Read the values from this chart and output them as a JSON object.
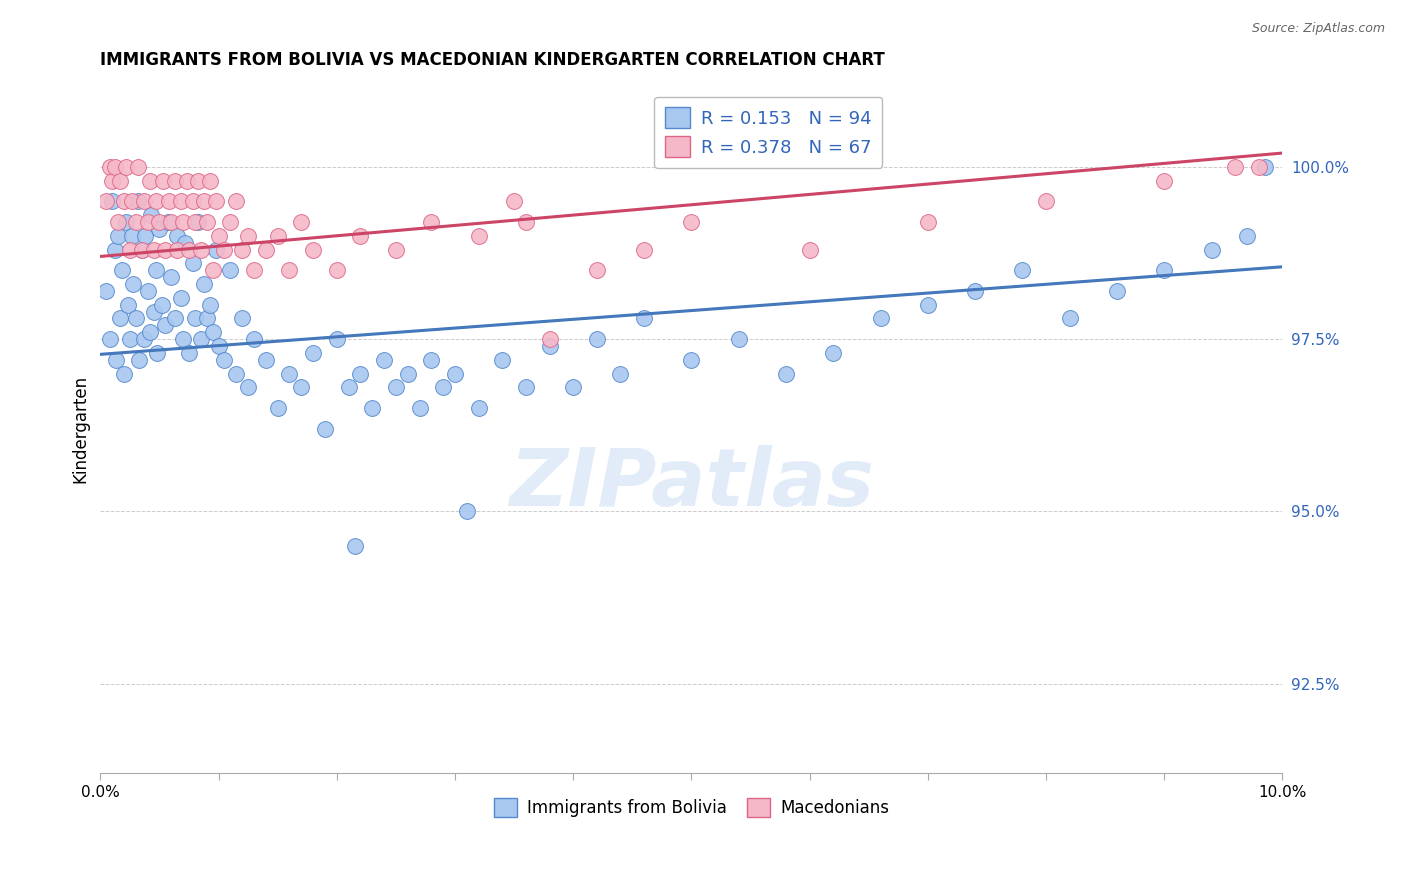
{
  "title": "IMMIGRANTS FROM BOLIVIA VS MACEDONIAN KINDERGARTEN CORRELATION CHART",
  "source": "Source: ZipAtlas.com",
  "ylabel": "Kindergarten",
  "ytick_labels": [
    "92.5%",
    "95.0%",
    "97.5%",
    "100.0%"
  ],
  "ytick_values": [
    92.5,
    95.0,
    97.5,
    100.0
  ],
  "ymin": 91.2,
  "ymax": 101.2,
  "xmin": 0.0,
  "xmax": 10.0,
  "legend_blue_r": "0.153",
  "legend_blue_n": "94",
  "legend_pink_r": "0.378",
  "legend_pink_n": "67",
  "color_blue_fill": "#A8C8F0",
  "color_pink_fill": "#F5B8C8",
  "color_blue_edge": "#5588CC",
  "color_pink_edge": "#DD6688",
  "color_blue_line": "#4477BB",
  "color_pink_line": "#CC4466",
  "color_blue_text": "#3366BB",
  "color_pink_text": "#CC4466",
  "watermark_text": "ZIPatlas",
  "blue_line_x0": 0.0,
  "blue_line_y0": 97.28,
  "blue_line_x1": 10.0,
  "blue_line_y1": 98.55,
  "pink_line_x0": 0.0,
  "pink_line_y0": 98.7,
  "pink_line_x1": 10.0,
  "pink_line_y1": 100.2,
  "blue_scatter_x": [
    0.05,
    0.08,
    0.1,
    0.12,
    0.13,
    0.15,
    0.17,
    0.18,
    0.2,
    0.22,
    0.23,
    0.25,
    0.27,
    0.28,
    0.3,
    0.32,
    0.33,
    0.35,
    0.37,
    0.38,
    0.4,
    0.42,
    0.43,
    0.45,
    0.47,
    0.48,
    0.5,
    0.52,
    0.55,
    0.57,
    0.6,
    0.63,
    0.65,
    0.68,
    0.7,
    0.72,
    0.75,
    0.78,
    0.8,
    0.83,
    0.85,
    0.88,
    0.9,
    0.93,
    0.95,
    0.98,
    1.0,
    1.05,
    1.1,
    1.15,
    1.2,
    1.25,
    1.3,
    1.4,
    1.5,
    1.6,
    1.7,
    1.8,
    1.9,
    2.0,
    2.1,
    2.2,
    2.3,
    2.4,
    2.5,
    2.6,
    2.7,
    2.8,
    2.9,
    3.0,
    3.2,
    3.4,
    3.6,
    3.8,
    4.0,
    4.2,
    4.4,
    4.6,
    5.0,
    5.4,
    5.8,
    6.2,
    6.6,
    7.0,
    7.4,
    7.8,
    8.2,
    8.6,
    9.0,
    9.4,
    9.7,
    9.85,
    3.1,
    2.15
  ],
  "blue_scatter_y": [
    98.2,
    97.5,
    99.5,
    98.8,
    97.2,
    99.0,
    97.8,
    98.5,
    97.0,
    99.2,
    98.0,
    97.5,
    99.0,
    98.3,
    97.8,
    99.5,
    97.2,
    98.8,
    97.5,
    99.0,
    98.2,
    97.6,
    99.3,
    97.9,
    98.5,
    97.3,
    99.1,
    98.0,
    97.7,
    99.2,
    98.4,
    97.8,
    99.0,
    98.1,
    97.5,
    98.9,
    97.3,
    98.6,
    97.8,
    99.2,
    97.5,
    98.3,
    97.8,
    98.0,
    97.6,
    98.8,
    97.4,
    97.2,
    98.5,
    97.0,
    97.8,
    96.8,
    97.5,
    97.2,
    96.5,
    97.0,
    96.8,
    97.3,
    96.2,
    97.5,
    96.8,
    97.0,
    96.5,
    97.2,
    96.8,
    97.0,
    96.5,
    97.2,
    96.8,
    97.0,
    96.5,
    97.2,
    96.8,
    97.4,
    96.8,
    97.5,
    97.0,
    97.8,
    97.2,
    97.5,
    97.0,
    97.3,
    97.8,
    98.0,
    98.2,
    98.5,
    97.8,
    98.2,
    98.5,
    98.8,
    99.0,
    100.0,
    95.0,
    94.5
  ],
  "pink_scatter_x": [
    0.05,
    0.08,
    0.1,
    0.12,
    0.15,
    0.17,
    0.2,
    0.22,
    0.25,
    0.27,
    0.3,
    0.32,
    0.35,
    0.37,
    0.4,
    0.42,
    0.45,
    0.47,
    0.5,
    0.53,
    0.55,
    0.58,
    0.6,
    0.63,
    0.65,
    0.68,
    0.7,
    0.73,
    0.75,
    0.78,
    0.8,
    0.83,
    0.85,
    0.88,
    0.9,
    0.93,
    0.95,
    0.98,
    1.0,
    1.05,
    1.1,
    1.15,
    1.2,
    1.25,
    1.3,
    1.4,
    1.5,
    1.6,
    1.7,
    1.8,
    2.0,
    2.2,
    2.5,
    2.8,
    3.2,
    3.6,
    4.2,
    5.0,
    6.0,
    7.0,
    8.0,
    9.0,
    9.6,
    9.8,
    3.8,
    4.6,
    3.5
  ],
  "pink_scatter_y": [
    99.5,
    100.0,
    99.8,
    100.0,
    99.2,
    99.8,
    99.5,
    100.0,
    98.8,
    99.5,
    99.2,
    100.0,
    98.8,
    99.5,
    99.2,
    99.8,
    98.8,
    99.5,
    99.2,
    99.8,
    98.8,
    99.5,
    99.2,
    99.8,
    98.8,
    99.5,
    99.2,
    99.8,
    98.8,
    99.5,
    99.2,
    99.8,
    98.8,
    99.5,
    99.2,
    99.8,
    98.5,
    99.5,
    99.0,
    98.8,
    99.2,
    99.5,
    98.8,
    99.0,
    98.5,
    98.8,
    99.0,
    98.5,
    99.2,
    98.8,
    98.5,
    99.0,
    98.8,
    99.2,
    99.0,
    99.2,
    98.5,
    99.2,
    98.8,
    99.2,
    99.5,
    99.8,
    100.0,
    100.0,
    97.5,
    98.8,
    99.5
  ]
}
